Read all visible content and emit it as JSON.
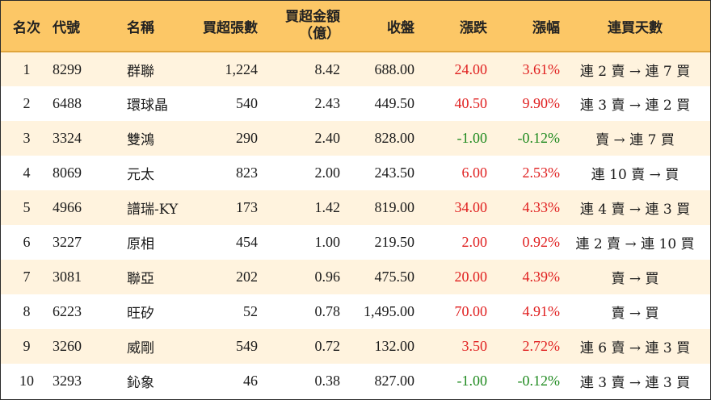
{
  "headers": {
    "rank": "名次",
    "code": "代號",
    "name": "名稱",
    "lots": "買超張數",
    "amount_line1": "買超金額",
    "amount_line2": "（億）",
    "close": "收盤",
    "change": "漲跌",
    "pct": "漲幅",
    "streak": "連買天數"
  },
  "colors": {
    "header_bg": "#fcc766",
    "stripe": "#fff3de",
    "up": "#e02020",
    "down": "#1f8a1f"
  },
  "rows": [
    {
      "rank": "1",
      "code": "8299",
      "name": "群聯",
      "lots": "1,224",
      "amount": "8.42",
      "close": "688.00",
      "change": "24.00",
      "pct": "3.61%",
      "streak": "連 2 賣 → 連 7 買",
      "dir": "up"
    },
    {
      "rank": "2",
      "code": "6488",
      "name": "環球晶",
      "lots": "540",
      "amount": "2.43",
      "close": "449.50",
      "change": "40.50",
      "pct": "9.90%",
      "streak": "連 3 賣 → 連 2 買",
      "dir": "up"
    },
    {
      "rank": "3",
      "code": "3324",
      "name": "雙鴻",
      "lots": "290",
      "amount": "2.40",
      "close": "828.00",
      "change": "-1.00",
      "pct": "-0.12%",
      "streak": "賣 → 連 7 買",
      "dir": "down"
    },
    {
      "rank": "4",
      "code": "8069",
      "name": "元太",
      "lots": "823",
      "amount": "2.00",
      "close": "243.50",
      "change": "6.00",
      "pct": "2.53%",
      "streak": "連 10 賣 → 買",
      "dir": "up"
    },
    {
      "rank": "5",
      "code": "4966",
      "name": "譜瑞-KY",
      "lots": "173",
      "amount": "1.42",
      "close": "819.00",
      "change": "34.00",
      "pct": "4.33%",
      "streak": "連 4 賣 → 連 3 買",
      "dir": "up"
    },
    {
      "rank": "6",
      "code": "3227",
      "name": "原相",
      "lots": "454",
      "amount": "1.00",
      "close": "219.50",
      "change": "2.00",
      "pct": "0.92%",
      "streak": "連 2 賣 → 連 10 買",
      "dir": "up"
    },
    {
      "rank": "7",
      "code": "3081",
      "name": "聯亞",
      "lots": "202",
      "amount": "0.96",
      "close": "475.50",
      "change": "20.00",
      "pct": "4.39%",
      "streak": "賣 → 買",
      "dir": "up"
    },
    {
      "rank": "8",
      "code": "6223",
      "name": "旺矽",
      "lots": "52",
      "amount": "0.78",
      "close": "1,495.00",
      "change": "70.00",
      "pct": "4.91%",
      "streak": "賣 → 買",
      "dir": "up"
    },
    {
      "rank": "9",
      "code": "3260",
      "name": "威剛",
      "lots": "549",
      "amount": "0.72",
      "close": "132.00",
      "change": "3.50",
      "pct": "2.72%",
      "streak": "連 6 賣 → 連 3 買",
      "dir": "up"
    },
    {
      "rank": "10",
      "code": "3293",
      "name": "鈊象",
      "lots": "46",
      "amount": "0.38",
      "close": "827.00",
      "change": "-1.00",
      "pct": "-0.12%",
      "streak": "連 3 賣 → 連 3 買",
      "dir": "down"
    }
  ]
}
